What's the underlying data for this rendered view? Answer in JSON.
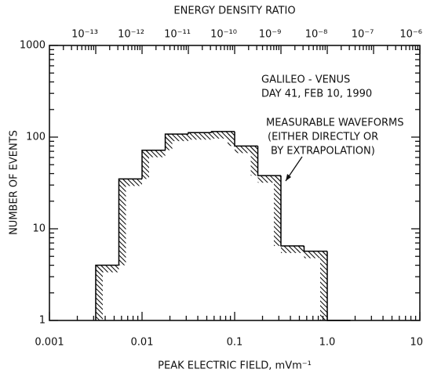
{
  "chart_data": {
    "type": "histogram",
    "title": "ENERGY DENSITY RATIO",
    "xlabel": "PEAK ELECTRIC FIELD, mVm⁻¹",
    "ylabel": "NUMBER OF EVENTS",
    "bins": [
      0.00316,
      0.00562,
      0.01,
      0.0178,
      0.0316,
      0.0562,
      0.1,
      0.178,
      0.316,
      0.562,
      1,
      1.78
    ],
    "values": [
      4,
      35,
      72,
      108,
      112,
      115,
      80,
      38,
      6.5,
      5.7,
      1
    ],
    "color": "#000000",
    "xscale": "log",
    "yscale": "log",
    "xlim": [
      0.001,
      10
    ],
    "ylim": [
      1,
      1000
    ],
    "xticks": [
      0.001,
      0.01,
      0.1,
      {
        "value": 1,
        "label": "1.0"
      },
      10
    ],
    "yticks": [
      1,
      10,
      100,
      1000
    ],
    "x2lim": [
      1e-14,
      1e-06
    ],
    "x2ticks": [
      {
        "value": 1e-13,
        "label": "10⁻¹³"
      },
      {
        "value": 1e-12,
        "label": "10⁻¹²"
      },
      {
        "value": 1e-11,
        "label": "10⁻¹¹"
      },
      {
        "value": 1e-10,
        "label": "10⁻¹⁰"
      },
      {
        "value": 1e-09,
        "label": "10⁻⁹"
      },
      {
        "value": 1e-08,
        "label": "10⁻⁸"
      },
      {
        "value": 1e-07,
        "label": "10⁻⁷"
      },
      {
        "value": 1e-06,
        "label": "10⁻⁶"
      }
    ],
    "annotations": [
      "GALILEO - VENUS",
      "DAY 41, FEB 10, 1990",
      "MEASURABLE WAVEFORMS",
      "(EITHER DIRECTLY OR",
      "BY EXTRAPOLATION)"
    ]
  }
}
